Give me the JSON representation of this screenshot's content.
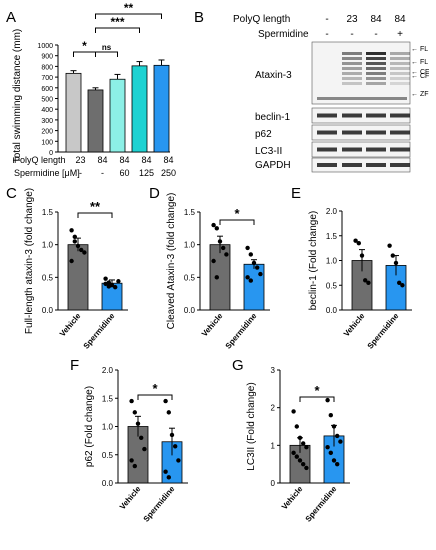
{
  "figure": {
    "panel_letters": [
      "A",
      "B",
      "C",
      "D",
      "E",
      "F",
      "G"
    ],
    "colors": {
      "gray_light": "#c8c8c8",
      "gray_dark": "#6e6e6e",
      "teal_light": "#8cf0e6",
      "teal": "#1ed2d2",
      "blue": "#2896f0",
      "blot_bg": "#f4f4f4",
      "band": "#1a1a1a"
    }
  },
  "panelA": {
    "letter": "A",
    "ylabel": "Total swimming distance (mm)",
    "row1_label": "PolyQ length",
    "row2_label": "Spermidine [μM]",
    "row1": [
      "23",
      "84",
      "84",
      "84",
      "84"
    ],
    "row2": [
      "-",
      "-",
      "60",
      "125",
      "250"
    ],
    "ticks": [
      "0",
      "100",
      "200",
      "300",
      "400",
      "500",
      "600",
      "700",
      "800",
      "900",
      "1000"
    ],
    "sig": [
      {
        "label": "*"
      },
      {
        "label": "ns"
      },
      {
        "label": "***"
      },
      {
        "label": "**"
      }
    ]
  },
  "panelB": {
    "letter": "B",
    "row1_label": "PolyQ length",
    "row2_label": "Spermidine",
    "row1": [
      "-",
      "23",
      "84",
      "84"
    ],
    "row2": [
      "-",
      "-",
      "-",
      "+"
    ],
    "blot_labels": [
      "Ataxin-3",
      "beclin-1",
      "p62",
      "LC3-II",
      "GAPDH"
    ],
    "arrows": [
      "FL",
      "FL",
      "CF",
      "CF",
      "ZF"
    ]
  },
  "panelC": {
    "letter": "C",
    "ylabel": "Full-length ataxin-3 (fold change)",
    "sig": "**",
    "ticks": [
      "0.0",
      "0.5",
      "1.0",
      "1.5"
    ]
  },
  "panelD": {
    "letter": "D",
    "ylabel": "Cleaved Ataxin-3 (fold change)",
    "sig": "*",
    "ticks": [
      "0.0",
      "0.5",
      "1.0",
      "1.5"
    ]
  },
  "panelE": {
    "letter": "E",
    "ylabel": "beclin-1 (Fold change)",
    "sig": "",
    "ticks": [
      "0.0",
      "0.5",
      "1.0",
      "1.5",
      "2.0"
    ]
  },
  "panelF": {
    "letter": "F",
    "ylabel": "p62 (Fold change)",
    "sig": "*",
    "ticks": [
      "0.0",
      "0.5",
      "1.0",
      "1.5",
      "2.0"
    ]
  },
  "panelG": {
    "letter": "G",
    "ylabel": "LC3II (Fold change)",
    "sig": "*",
    "ticks": [
      "0",
      "1",
      "2",
      "3"
    ]
  },
  "chart_data": [
    {
      "id": "A",
      "type": "bar",
      "categories": [
        "23 / -",
        "84 / -",
        "84 / 60",
        "84 / 125",
        "84 / 250"
      ],
      "values": [
        735,
        580,
        680,
        805,
        810
      ],
      "errors": [
        25,
        20,
        45,
        40,
        50
      ],
      "ylim": [
        0,
        1000
      ],
      "ylabel": "Total swimming distance (mm)"
    },
    {
      "id": "C",
      "type": "bar",
      "categories": [
        "Vehicle",
        "Spermidine"
      ],
      "values": [
        1.0,
        0.41
      ],
      "errors": [
        0.1,
        0.05
      ],
      "ylim": [
        0,
        1.5
      ],
      "points": [
        [
          1.22,
          1.12,
          0.98,
          0.92,
          0.88,
          0.75,
          1.05
        ],
        [
          0.48,
          0.42,
          0.38,
          0.35,
          0.44,
          0.4,
          0.36
        ]
      ],
      "ylabel": "Full-length ataxin-3 (fold change)"
    },
    {
      "id": "D",
      "type": "bar",
      "categories": [
        "Vehicle",
        "Spermidine"
      ],
      "values": [
        1.0,
        0.7
      ],
      "errors": [
        0.13,
        0.07
      ],
      "ylim": [
        0,
        1.5
      ],
      "points": [
        [
          1.3,
          1.25,
          1.05,
          0.95,
          0.85,
          0.75,
          0.5
        ],
        [
          0.95,
          0.85,
          0.72,
          0.65,
          0.55,
          0.5,
          0.45
        ]
      ],
      "ylabel": "Cleaved Ataxin-3 (fold change)"
    },
    {
      "id": "E",
      "type": "bar",
      "categories": [
        "Vehicle",
        "Spermidine"
      ],
      "values": [
        1.0,
        0.9
      ],
      "errors": [
        0.22,
        0.2
      ],
      "ylim": [
        0,
        2.0
      ],
      "points": [
        [
          1.4,
          1.35,
          1.1,
          0.6,
          0.55
        ],
        [
          1.3,
          1.1,
          0.95,
          0.55,
          0.5
        ]
      ],
      "ylabel": "beclin-1 (Fold change)"
    },
    {
      "id": "F",
      "type": "bar",
      "categories": [
        "Vehicle",
        "Spermidine"
      ],
      "values": [
        1.0,
        0.73
      ],
      "errors": [
        0.18,
        0.24
      ],
      "ylim": [
        0,
        2.0
      ],
      "points": [
        [
          1.45,
          1.25,
          1.05,
          0.8,
          0.6,
          0.4,
          0.3
        ],
        [
          1.45,
          1.25,
          0.85,
          0.65,
          0.4,
          0.2,
          0.1
        ]
      ],
      "ylabel": "p62 (Fold change)"
    },
    {
      "id": "G",
      "type": "bar",
      "categories": [
        "Vehicle",
        "Spermidine"
      ],
      "values": [
        1.0,
        1.25
      ],
      "errors": [
        0.2,
        0.28
      ],
      "ylim": [
        0,
        3
      ],
      "points": [
        [
          1.9,
          1.5,
          1.2,
          1.05,
          0.95,
          0.8,
          0.7,
          0.6,
          0.5,
          0.4
        ],
        [
          2.2,
          1.8,
          1.5,
          1.25,
          1.1,
          0.95,
          0.8,
          0.6,
          0.5
        ]
      ],
      "ylabel": "LC3II (Fold change)"
    }
  ]
}
